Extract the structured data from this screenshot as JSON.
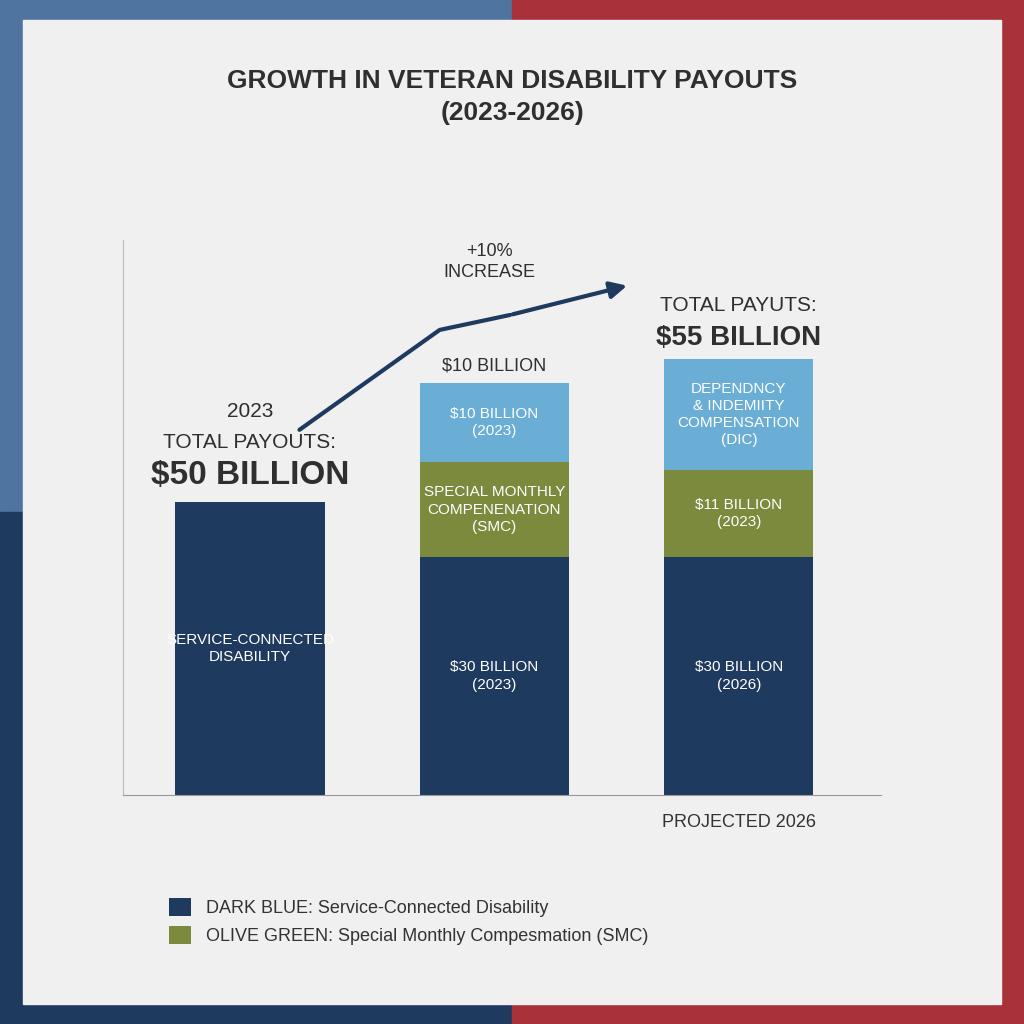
{
  "chart_data": {
    "type": "bar",
    "title": "GROWTH IN VETERAN DISABILITY PAYOUTS\n(2023-2026)",
    "categories": [
      null,
      null,
      "PROJECTED 2026"
    ],
    "stacked": true,
    "data_labels": true,
    "tick_labels": "x",
    "ylim": [
      0,
      70
    ],
    "yticks": [],
    "legend": "lower left",
    "series": [
      {
        "name": "DARK BLUE: Service-Connected Disability",
        "color": "#1f3a5f",
        "values": [
          37,
          30,
          30
        ],
        "value_labels": [
          "SERVICE-CONNECTED\nDISABILITY",
          "$30 BILLION\n(2023)",
          "$30 BILLION\n(2026)"
        ]
      },
      {
        "name": "OLIVE GREEN: Special Monthly Compesmation (SMC)",
        "color": "#7b8a3c",
        "values": [
          null,
          12,
          11
        ],
        "value_labels": [
          null,
          "SPECIAL MONTHLY\nCOMPENENATION\n(SMC)",
          "$11 BILLION\n(2023)"
        ]
      },
      {
        "color": "#6aaed6",
        "values": [
          null,
          10,
          14
        ],
        "value_labels": [
          null,
          "$10 BILLION\n(2023)",
          "DEPENDNCY\n& INDEMIITY\nCOMPENSATION\n(DIC)"
        ]
      }
    ],
    "annotations": [
      "2023",
      "TOTAL PAYOUTS:",
      "$50 BILLION",
      "$10 BILLION",
      "+10%\nINCREASE",
      "TOTAL PAYUTS:",
      "$55 BILLION"
    ]
  }
}
